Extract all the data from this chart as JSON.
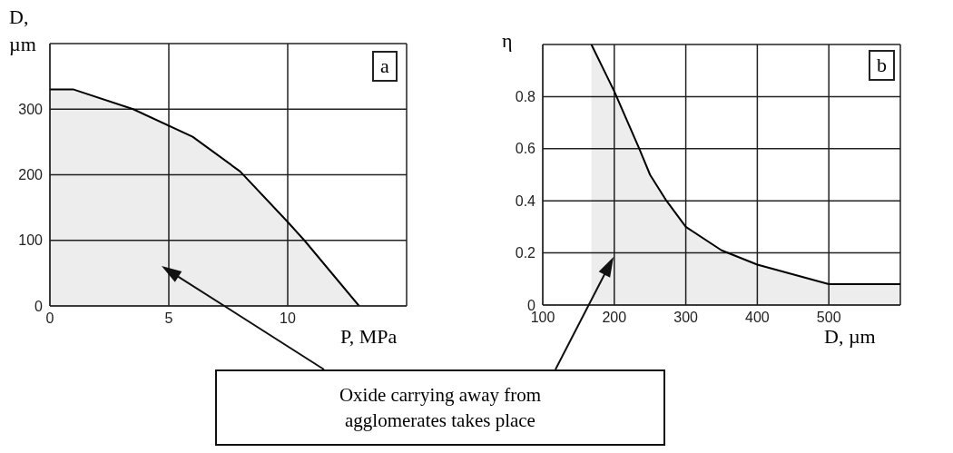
{
  "chart_data": [
    {
      "type": "area",
      "title": "a",
      "xlabel": "P, MPa",
      "ylabel": "D, µm",
      "xlim": [
        0,
        15
      ],
      "xticks": [
        0,
        5,
        10
      ],
      "ylim": [
        0,
        400
      ],
      "yticks": [
        0,
        100,
        200,
        300
      ],
      "grid": true,
      "legend": false,
      "series": [
        {
          "color": "#000000",
          "x": [
            0,
            1,
            3.5,
            6,
            8,
            10,
            10.7,
            13
          ],
          "values": [
            330,
            330,
            300,
            258,
            205,
            128,
            100,
            0
          ]
        }
      ],
      "annotations": [
        "Oxide carrying away from agglomerates takes place"
      ]
    },
    {
      "type": "area",
      "title": "b",
      "xlabel": "D, µm",
      "ylabel": "η",
      "xlim": [
        100,
        600
      ],
      "xticks": [
        100,
        200,
        300,
        400,
        500
      ],
      "ylim": [
        0,
        1
      ],
      "yticks": [
        0,
        0.2,
        0.4,
        0.6,
        0.8
      ],
      "grid": true,
      "legend": false,
      "series": [
        {
          "color": "#000000",
          "x": [
            168,
            200,
            235,
            250,
            273,
            300,
            350,
            400,
            500,
            600
          ],
          "values": [
            1,
            0.82,
            0.6,
            0.5,
            0.4,
            0.3,
            0.21,
            0.155,
            0.08,
            0.08
          ]
        }
      ]
    }
  ]
}
